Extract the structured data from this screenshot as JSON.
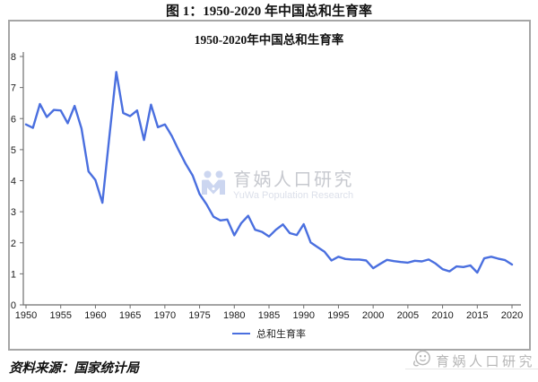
{
  "figure": {
    "caption": "图 1：1950-2020 年中国总和生育率",
    "source": "资料来源：国家统计局"
  },
  "watermark": {
    "center": {
      "icon": "yuwa-logo-icon",
      "text_cn": "育娲人口研究",
      "text_en": "YuWa Population Research"
    },
    "footer": {
      "icon": "yuwa-face-icon",
      "text": "育娲人口研究"
    }
  },
  "colors": {
    "line": "#4a6fdf",
    "axis": "#6e6e6e",
    "tick_label": "#1a1a1a",
    "frame_border": "#a6a6a6",
    "watermark_blue": "#ccd6f0",
    "watermark_gray": "#b7b7b7"
  },
  "chart_data": {
    "type": "line",
    "title": "1950-2020年中国总和生育率",
    "xlabel": "",
    "ylabel": "",
    "ylim": [
      0,
      8
    ],
    "grid": false,
    "legend_position": "bottom",
    "xticks": [
      1950,
      1955,
      1960,
      1965,
      1970,
      1975,
      1980,
      1985,
      1990,
      1995,
      2000,
      2005,
      2010,
      2015,
      2020
    ],
    "yticks": [
      0,
      1,
      2,
      3,
      4,
      5,
      6,
      7,
      8
    ],
    "x": [
      1950,
      1951,
      1952,
      1953,
      1954,
      1955,
      1956,
      1957,
      1958,
      1959,
      1960,
      1961,
      1962,
      1963,
      1964,
      1965,
      1966,
      1967,
      1968,
      1969,
      1970,
      1971,
      1972,
      1973,
      1974,
      1975,
      1976,
      1977,
      1978,
      1979,
      1980,
      1981,
      1982,
      1983,
      1984,
      1985,
      1986,
      1987,
      1988,
      1989,
      1990,
      1991,
      1992,
      1993,
      1994,
      1995,
      1996,
      1997,
      1998,
      1999,
      2000,
      2001,
      2002,
      2003,
      2004,
      2005,
      2006,
      2007,
      2008,
      2009,
      2010,
      2011,
      2012,
      2013,
      2014,
      2015,
      2016,
      2017,
      2018,
      2019,
      2020
    ],
    "series": [
      {
        "name": "总和生育率",
        "color": "#4a6fdf",
        "values": [
          5.81,
          5.7,
          6.47,
          6.05,
          6.28,
          6.26,
          5.85,
          6.41,
          5.68,
          4.3,
          4.02,
          3.29,
          5.4,
          7.5,
          6.18,
          6.08,
          6.26,
          5.31,
          6.45,
          5.72,
          5.81,
          5.44,
          4.98,
          4.54,
          4.17,
          3.57,
          3.24,
          2.84,
          2.72,
          2.75,
          2.24,
          2.63,
          2.87,
          2.42,
          2.35,
          2.2,
          2.42,
          2.59,
          2.31,
          2.25,
          2.6,
          2.01,
          1.86,
          1.71,
          1.43,
          1.55,
          1.48,
          1.46,
          1.46,
          1.43,
          1.18,
          1.32,
          1.45,
          1.41,
          1.38,
          1.36,
          1.42,
          1.4,
          1.46,
          1.33,
          1.15,
          1.08,
          1.24,
          1.22,
          1.27,
          1.04,
          1.5,
          1.55,
          1.49,
          1.44,
          1.3
        ]
      }
    ]
  }
}
